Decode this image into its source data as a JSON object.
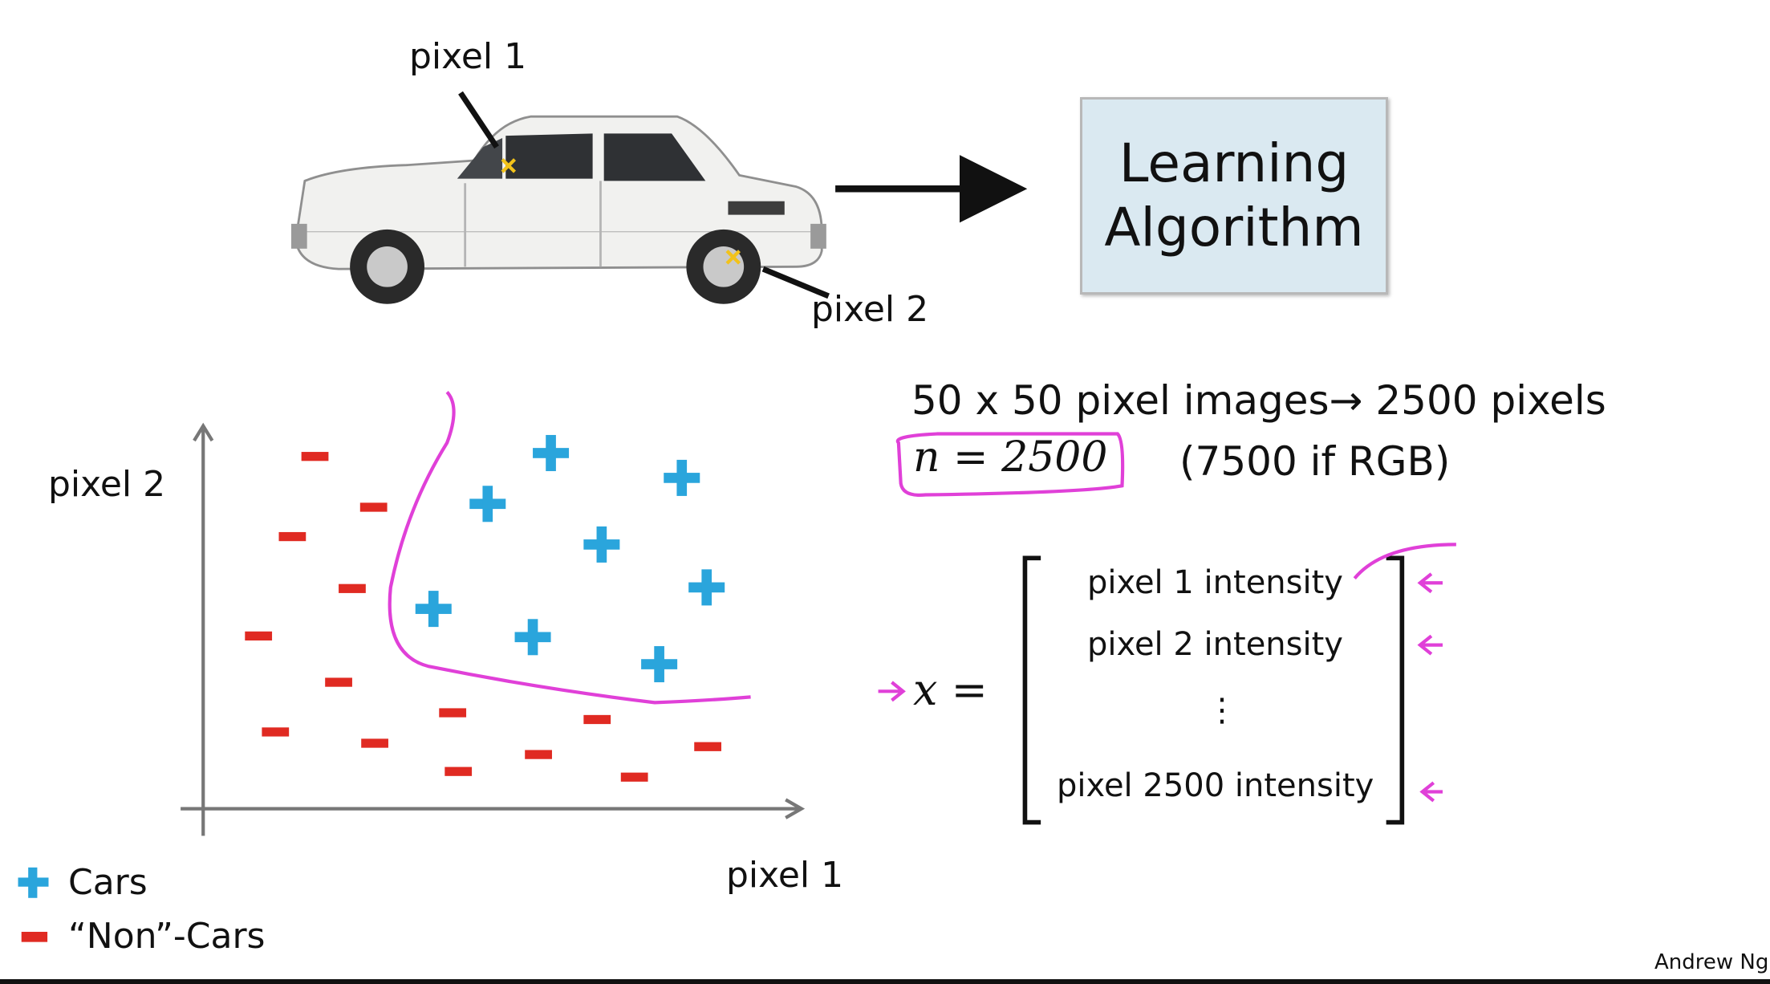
{
  "top": {
    "pixel1_label": "pixel 1",
    "pixel2_label": "pixel 2",
    "learning_algorithm": [
      "Learning",
      "Algorithm"
    ]
  },
  "plot": {
    "ylabel": "pixel 2",
    "xlabel": "pixel 1",
    "cars": [
      [
        488,
        401
      ],
      [
        604,
        423
      ],
      [
        432,
        446
      ],
      [
        533,
        482
      ],
      [
        626,
        520
      ],
      [
        384,
        539
      ],
      [
        472,
        564
      ],
      [
        584,
        588
      ]
    ],
    "non_cars": [
      [
        279,
        404
      ],
      [
        331,
        449
      ],
      [
        259,
        475
      ],
      [
        312,
        521
      ],
      [
        229,
        563
      ],
      [
        300,
        604
      ],
      [
        401,
        631
      ],
      [
        529,
        637
      ],
      [
        244,
        648
      ],
      [
        332,
        658
      ],
      [
        477,
        668
      ],
      [
        627,
        661
      ],
      [
        406,
        683
      ],
      [
        562,
        688
      ]
    ],
    "legend": {
      "cars": "Cars",
      "non_cars": "“Non”-Cars"
    }
  },
  "right": {
    "headline": "50 x 50 pixel images→ 2500 pixels",
    "n_equation": "n = 2500",
    "rgb_note": "(7500 if RGB)",
    "x_equals": "x =",
    "vector_rows": [
      "pixel 1 intensity",
      "pixel 2 intensity",
      "⋮",
      "pixel 2500 intensity"
    ]
  },
  "author": "Andrew Ng",
  "colors": {
    "car_plus": "#2aa5dc",
    "non_car": "#e02a22",
    "annotation": "#e040d8",
    "accent_box": "#dae9f1"
  }
}
